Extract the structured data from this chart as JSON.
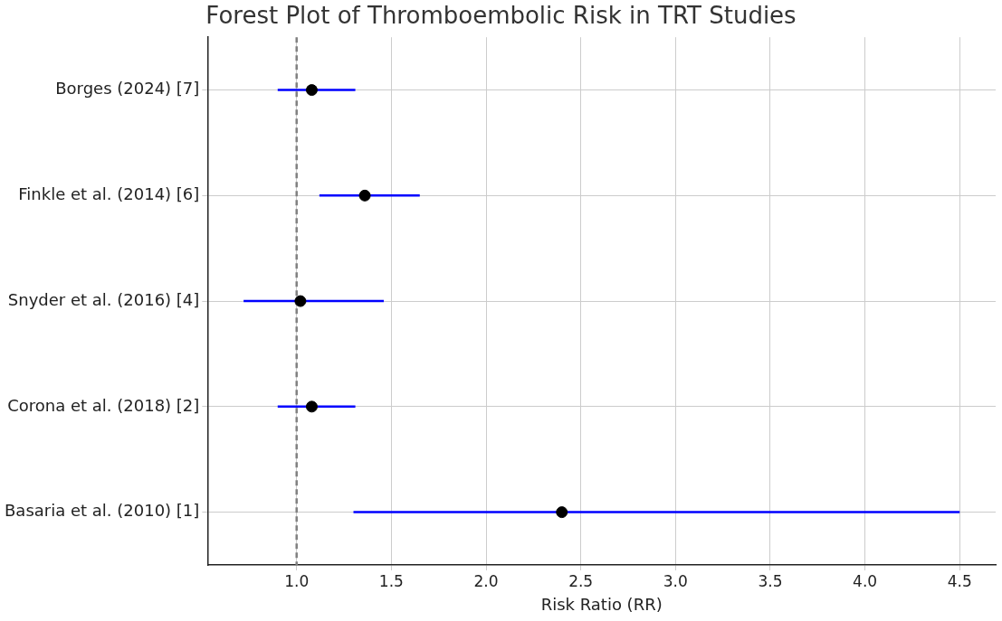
{
  "chart_data": {
    "type": "scatter",
    "orientation": "horizontal",
    "title": "Forest Plot of Thromboembolic Risk in TRT Studies",
    "xlabel": "Risk Ratio (RR)",
    "categories": [
      "Borges (2024) [7]",
      "Finkle et al. (2014) [6]",
      "Snyder et al. (2016) [4]",
      "Corona et al. (2018) [2]",
      "Basaria et al. (2010) [1]"
    ],
    "series": [
      {
        "color": "#000000",
        "values": [
          1.08,
          1.36,
          1.02,
          1.08,
          2.4
        ],
        "errors": [
          [
            0.9,
            1.31
          ],
          [
            1.12,
            1.65
          ],
          [
            0.72,
            1.46
          ],
          [
            0.9,
            1.31
          ],
          [
            1.3,
            4.5
          ]
        ]
      }
    ],
    "xlim": [
      0.53,
      4.69
    ],
    "xticks": [
      {
        "value": 1,
        "label": "1.0"
      },
      {
        "value": 1.5,
        "label": "1.5"
      },
      {
        "value": 2,
        "label": "2.0"
      },
      {
        "value": 2.5,
        "label": "2.5"
      },
      {
        "value": 3,
        "label": "3.0"
      },
      {
        "value": 3.5,
        "label": "3.5"
      },
      {
        "value": 4,
        "label": "4.0"
      },
      {
        "value": 4.5,
        "label": "4.5"
      }
    ],
    "ref_lines": [
      {
        "axis": "x",
        "value": 1,
        "color": "#808080",
        "line_style": "dashed"
      }
    ],
    "grid": true,
    "marker": "circle",
    "legend": false
  }
}
